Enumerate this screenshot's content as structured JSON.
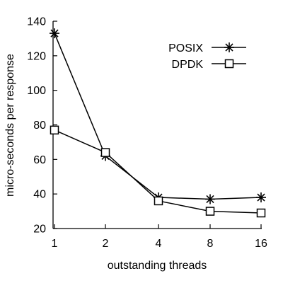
{
  "chart_data": {
    "type": "line",
    "x": [
      "1",
      "2",
      "4",
      "8",
      "16"
    ],
    "xlabel": "outstanding threads",
    "ylabel": "micro-seconds per response",
    "ylim": [
      20,
      140
    ],
    "yticks": [
      20,
      40,
      60,
      80,
      100,
      120,
      140
    ],
    "grid": false,
    "legend_position": "top-right",
    "series": [
      {
        "name": "POSIX",
        "marker": "asterisk",
        "color": "#000000",
        "values": [
          133,
          62,
          38,
          37,
          38
        ]
      },
      {
        "name": "DPDK",
        "marker": "square",
        "color": "#000000",
        "values": [
          77,
          64,
          36,
          30,
          29
        ]
      }
    ]
  }
}
